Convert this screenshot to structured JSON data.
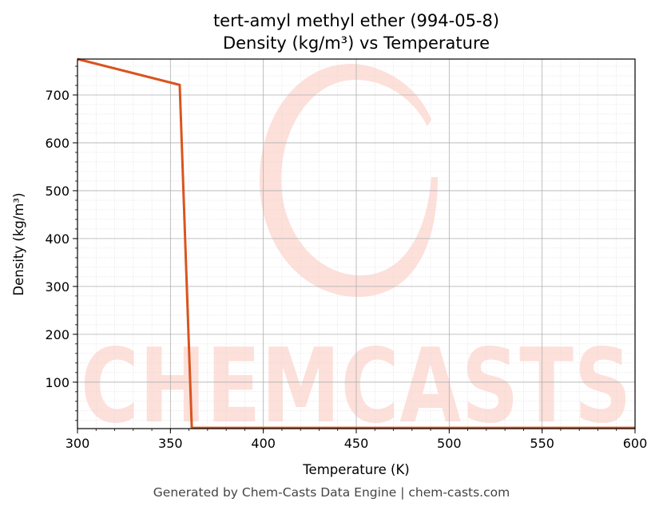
{
  "chart_data": {
    "type": "line",
    "title": "tert-amyl methyl ether (994-05-8)",
    "subtitle": "Density (kg/m³) vs Temperature",
    "xlabel": "Temperature (K)",
    "ylabel": "Density (kg/m³)",
    "xlim": [
      300,
      600
    ],
    "ylim": [
      3,
      775
    ],
    "xticks": [
      "300",
      "350",
      "400",
      "450",
      "500",
      "550",
      "600"
    ],
    "yticks": [
      "100",
      "200",
      "300",
      "400",
      "500",
      "600",
      "700"
    ],
    "grid": true,
    "series": [
      {
        "color": "#d9541e",
        "x": [
          300,
          355,
          361.5,
          362,
          600
        ],
        "y": [
          775,
          721,
          5,
          4.5,
          4.5
        ]
      }
    ]
  },
  "watermark": {
    "text": "CHEMCASTS",
    "color": "#fde0da"
  },
  "footer": "Generated by Chem-Casts Data Engine | chem-casts.com"
}
